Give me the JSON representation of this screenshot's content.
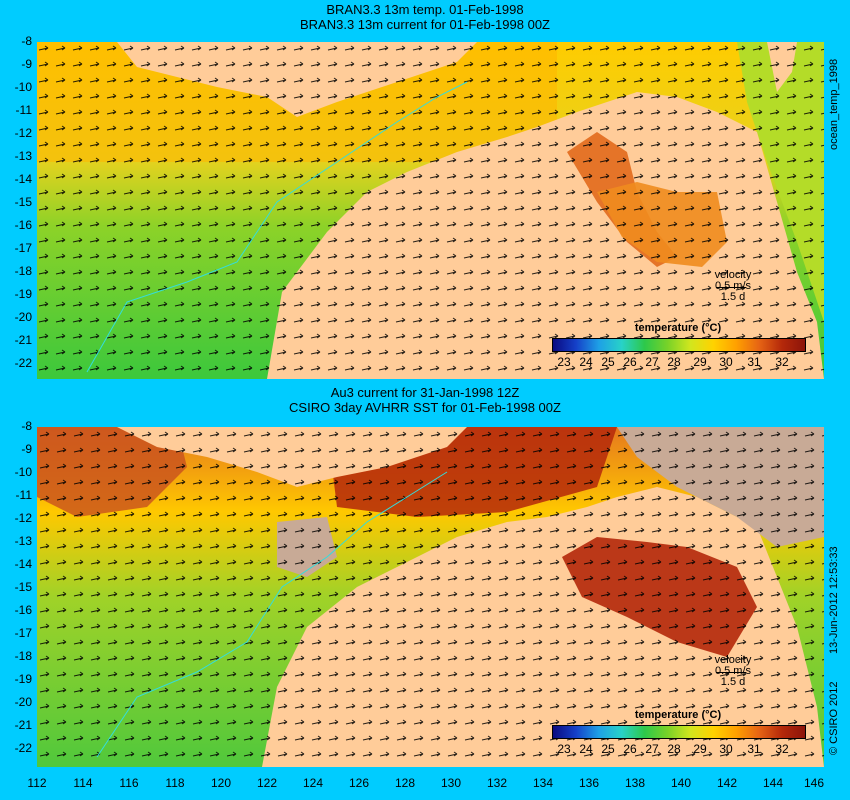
{
  "top": {
    "title_line1": "BRAN3.3 13m temp. 01-Feb-1998",
    "title_line2": "BRAN3.3 13m current for 01-Feb-1998 00Z",
    "legend_title": "temperature (°C)",
    "velocity_label": "velocity",
    "velocity_speed": "0.5 m/s",
    "velocity_duration": "1.5 d",
    "side_label": "ocean_temp_1998"
  },
  "bottom": {
    "title_line1": "Au3 current for 31-Jan-1998 12Z",
    "title_line2": "CSIRO 3day AVHRR SST for 01-Feb-1998 00Z",
    "legend_title": "temperature (°C)",
    "velocity_label": "velocity",
    "velocity_speed": "0.5 m/s",
    "velocity_duration": "1.5 d",
    "side_label": "13-Jun-2012 12:53:33",
    "copyright": "© CSIRO 2012"
  },
  "legend_ticks": [
    "23",
    "24",
    "25",
    "26",
    "27",
    "28",
    "29",
    "30",
    "31",
    "32"
  ],
  "y_ticks": [
    "-8",
    "-9",
    "-10",
    "-11",
    "-12",
    "-13",
    "-14",
    "-15",
    "-16",
    "-17",
    "-18",
    "-19",
    "-20",
    "-21",
    "-22"
  ],
  "x_ticks": [
    "112",
    "114",
    "116",
    "118",
    "120",
    "122",
    "124",
    "126",
    "128",
    "130",
    "132",
    "134",
    "136",
    "138",
    "140",
    "142",
    "144",
    "146"
  ],
  "colors": {
    "background": "#00ccff",
    "land": "#ffcc99",
    "cloud_mask": "#c8aa96",
    "coast": "#33dddd"
  }
}
